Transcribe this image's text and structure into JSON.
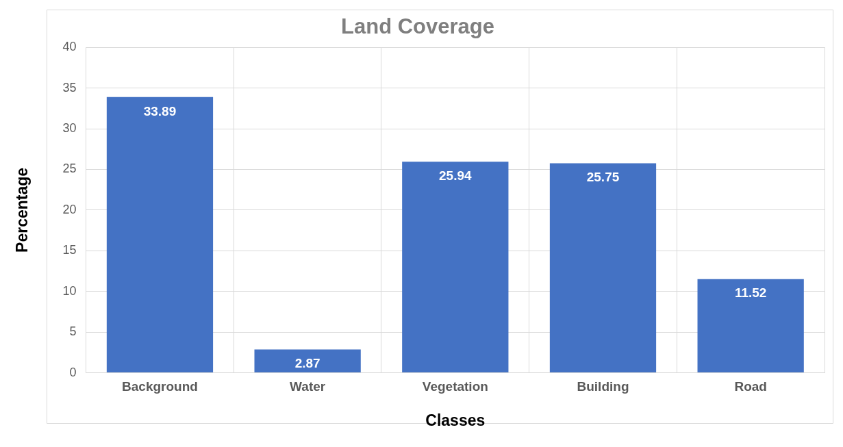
{
  "chart_data": {
    "type": "bar",
    "title": "Land Coverage",
    "xlabel": "Classes",
    "ylabel": "Percentage",
    "categories": [
      "Background",
      "Water",
      "Vegetation",
      "Building",
      "Road"
    ],
    "values": [
      33.89,
      2.87,
      25.94,
      25.75,
      11.52
    ],
    "color": "#4472c4",
    "ylim": [
      0,
      40
    ],
    "yticks": [
      0,
      5,
      10,
      15,
      20,
      25,
      30,
      35,
      40
    ],
    "grid": true,
    "data_labels": true
  }
}
